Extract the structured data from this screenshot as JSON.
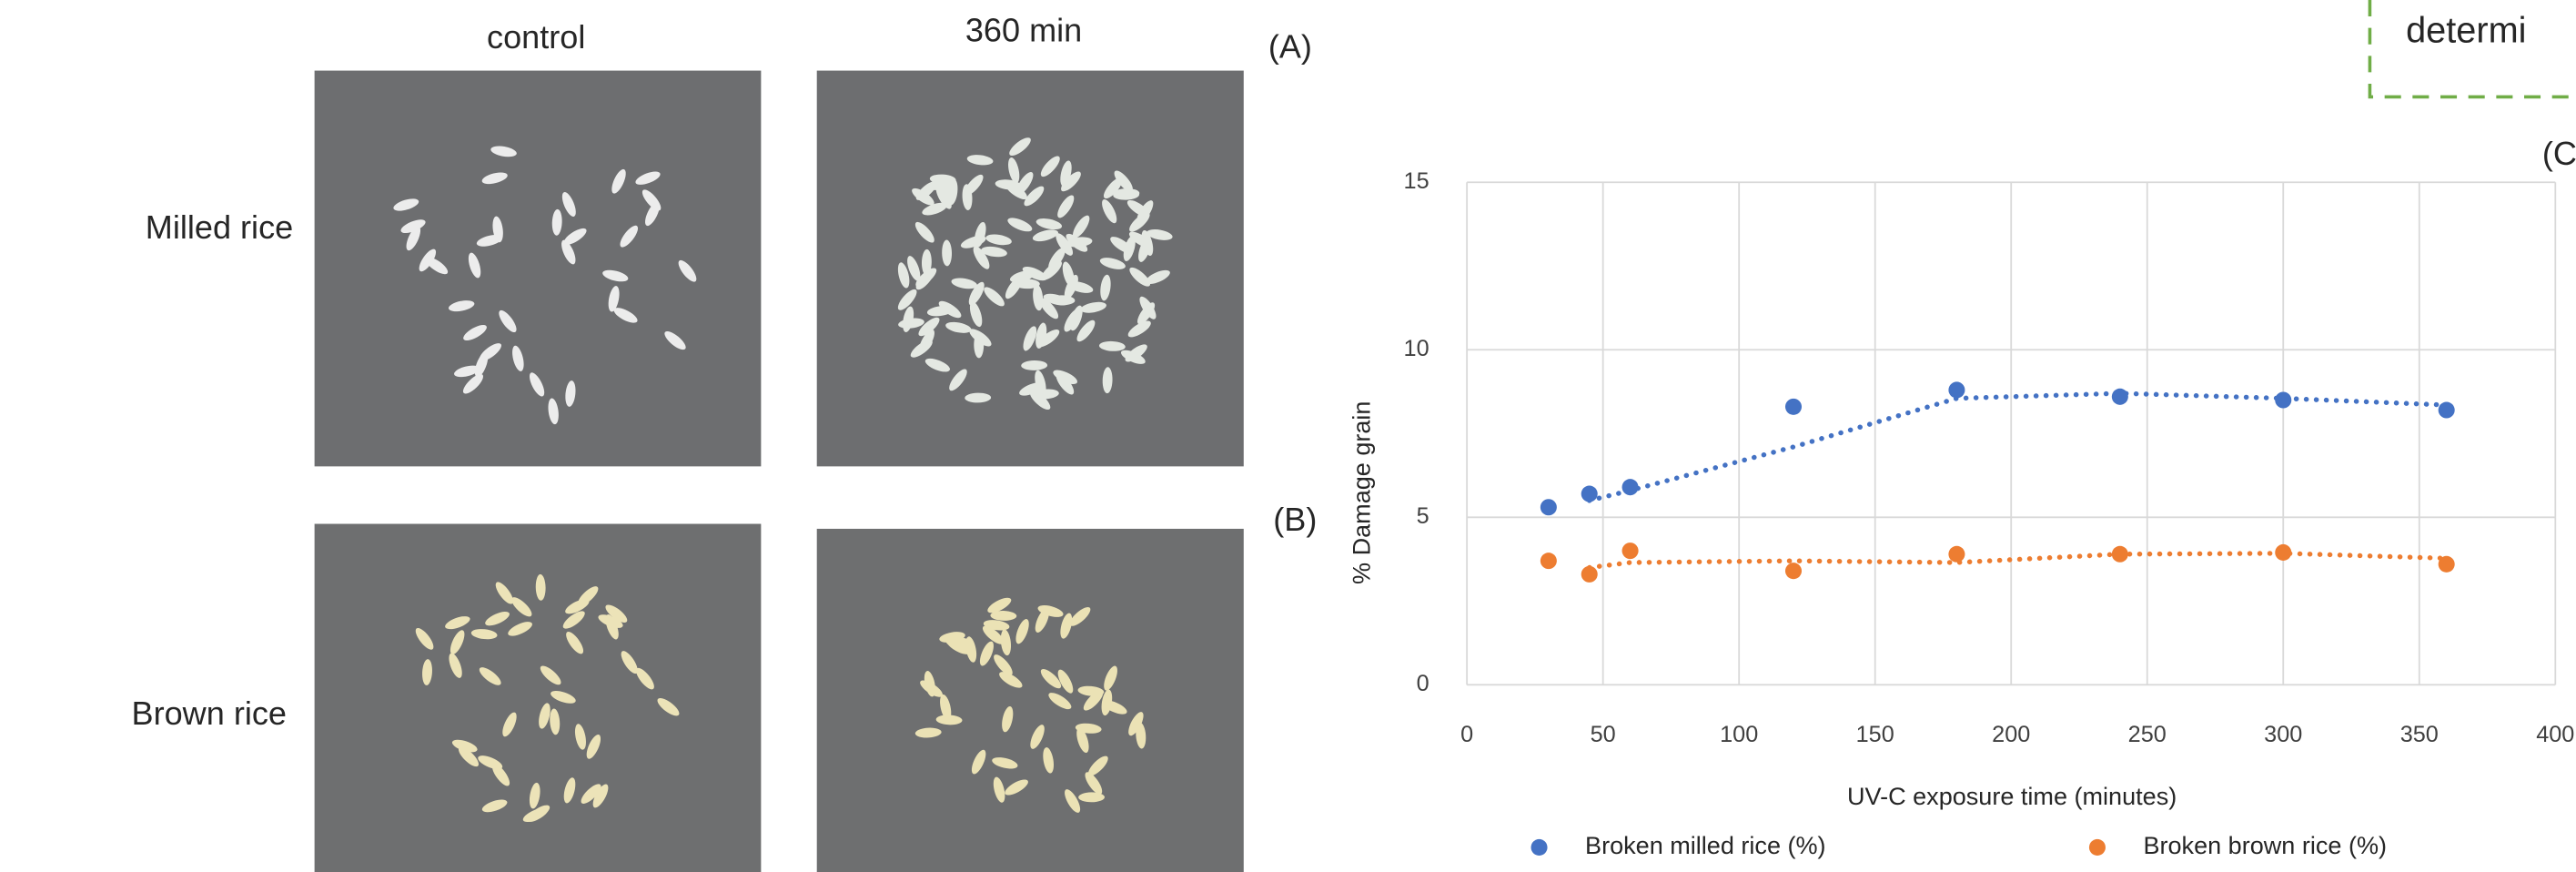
{
  "photo_panel": {
    "columns": [
      "control",
      "360 min"
    ],
    "rows": [
      "Milled rice",
      "Brown rice"
    ],
    "labels": [
      "(A)",
      "(B)"
    ]
  },
  "overlay": {
    "box_text": "determi",
    "label": "(C"
  },
  "chart_data": {
    "type": "scatter",
    "x": [
      30,
      45,
      60,
      120,
      180,
      240,
      300,
      360
    ],
    "series": [
      {
        "name": "Broken milled rice (%)",
        "color": "#4472c4",
        "values": [
          5.3,
          5.7,
          5.9,
          8.3,
          8.8,
          8.6,
          8.5,
          8.2
        ]
      },
      {
        "name": "Broken brown rice (%)",
        "color": "#ed7d31",
        "values": [
          3.7,
          3.3,
          4.0,
          3.4,
          3.9,
          3.9,
          3.95,
          3.6
        ]
      }
    ],
    "trendline_period": 2,
    "xlim": [
      0,
      400
    ],
    "xticks": [
      0,
      50,
      100,
      150,
      200,
      250,
      300,
      350,
      400
    ],
    "ylim": [
      0,
      15
    ],
    "yticks": [
      0,
      5,
      10,
      15
    ],
    "x_label": "UV-C exposure time (minutes)",
    "y_label": "% Damage grain",
    "grid": true,
    "legend": "bottom"
  }
}
